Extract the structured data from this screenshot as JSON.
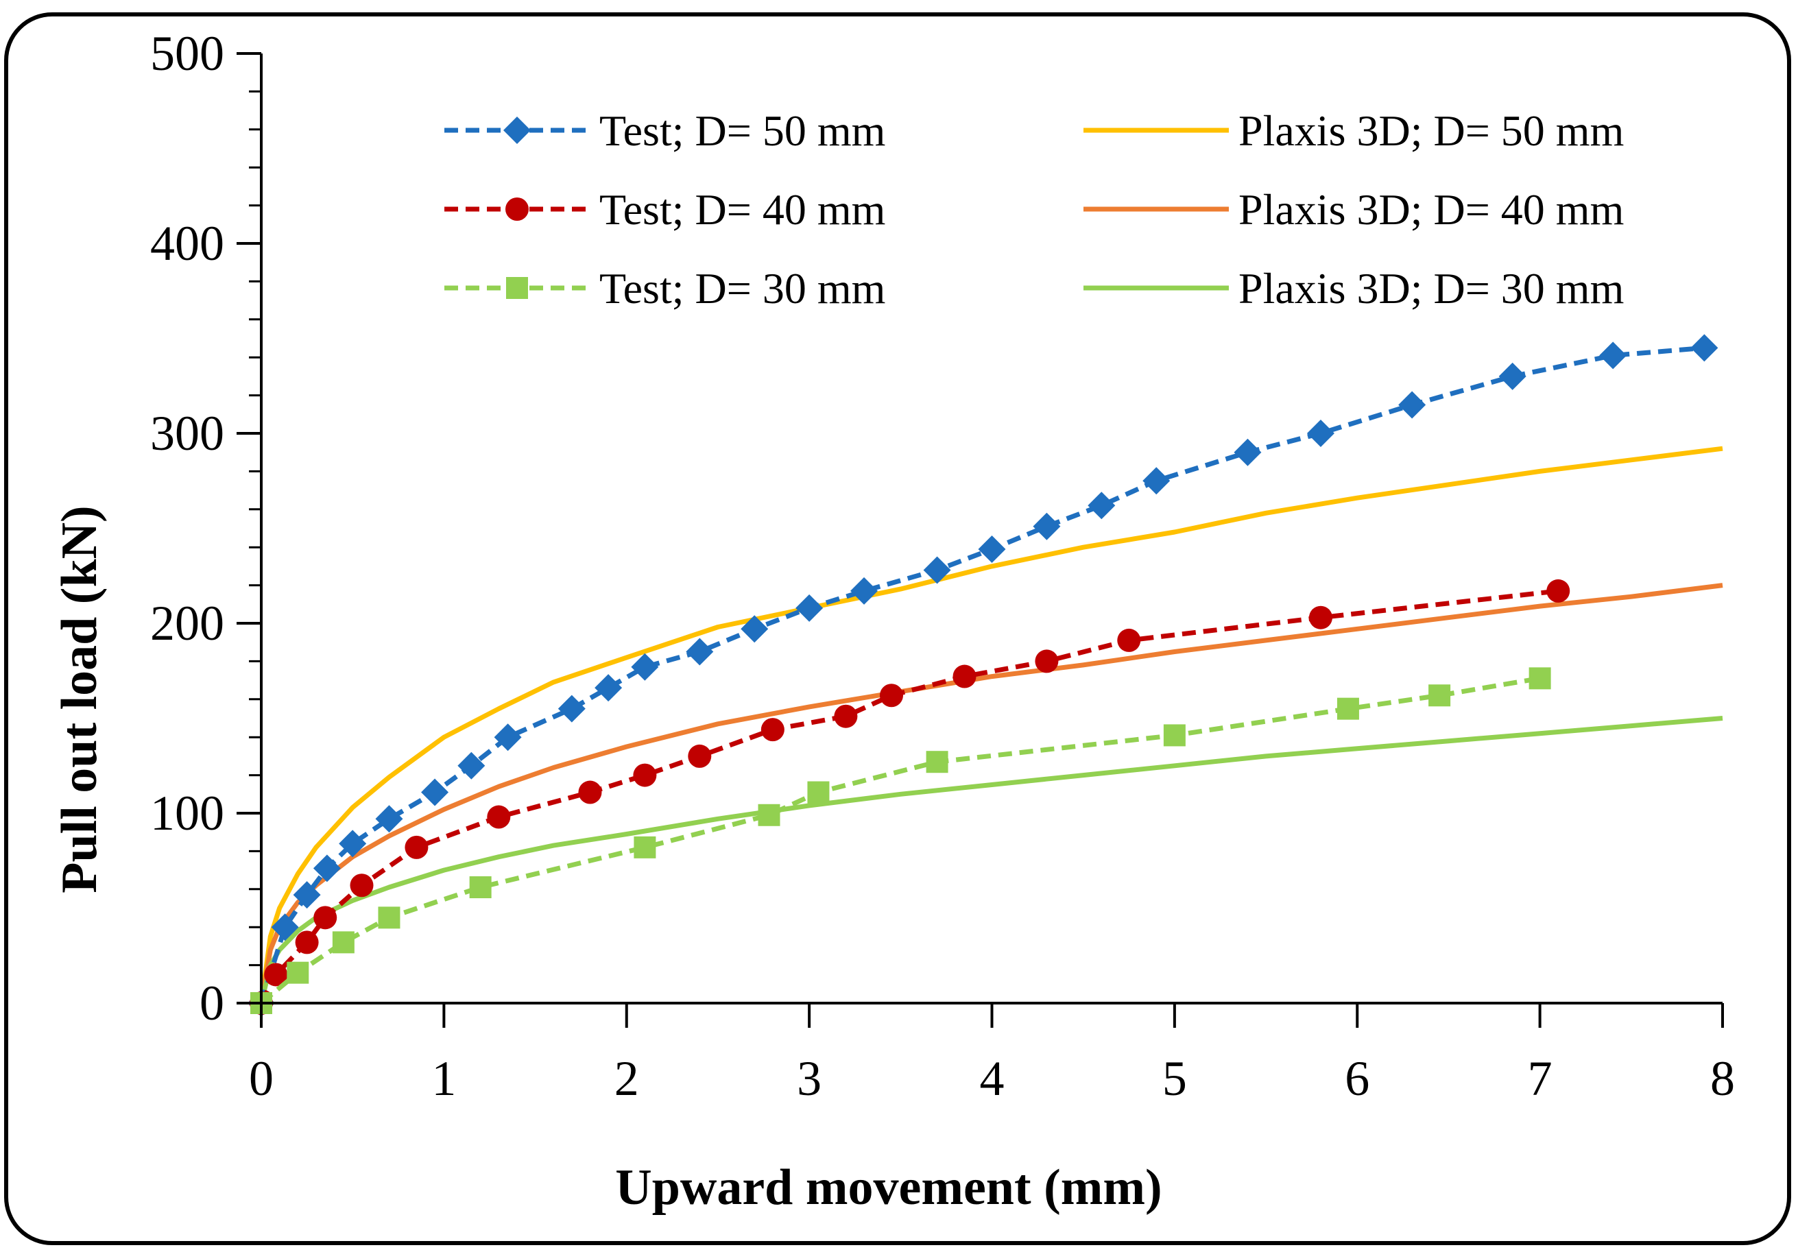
{
  "chart_data": {
    "type": "line",
    "title": "",
    "xlabel": "Upward movement (mm)",
    "ylabel": "Pull out load (kN)",
    "xlim": [
      0,
      8
    ],
    "ylim": [
      0,
      500
    ],
    "xticks": [
      0,
      1,
      2,
      3,
      4,
      5,
      6,
      7,
      8
    ],
    "yticks": [
      0,
      100,
      200,
      300,
      400,
      500
    ],
    "y_minor_step": 20,
    "grid": false,
    "legend_position": "top",
    "series": [
      {
        "name": "Test; D= 50 mm",
        "color": "#1F6FBF",
        "line": "dashed",
        "marker": "diamond",
        "x": [
          0,
          0.13,
          0.25,
          0.36,
          0.5,
          0.7,
          0.95,
          1.15,
          1.35,
          1.7,
          1.9,
          2.1,
          2.4,
          2.7,
          3.0,
          3.3,
          3.7,
          4.0,
          4.3,
          4.6,
          4.9,
          5.4,
          5.8,
          6.3,
          6.85,
          7.4,
          7.9
        ],
        "y": [
          0,
          40,
          57,
          71,
          84,
          97,
          111,
          125,
          140,
          155,
          166,
          177,
          185,
          197,
          208,
          217,
          228,
          239,
          251,
          262,
          275,
          290,
          300,
          315,
          330,
          341,
          345
        ]
      },
      {
        "name": "Test; D= 40 mm",
        "color": "#C00000",
        "line": "dashed",
        "marker": "circle",
        "x": [
          0,
          0.08,
          0.25,
          0.35,
          0.55,
          0.85,
          1.3,
          1.8,
          2.1,
          2.4,
          2.8,
          3.2,
          3.45,
          3.85,
          4.3,
          4.75,
          5.8,
          7.1
        ],
        "y": [
          0,
          15,
          32,
          45,
          62,
          82,
          98,
          111,
          120,
          130,
          144,
          151,
          162,
          172,
          180,
          191,
          203,
          217
        ]
      },
      {
        "name": "Test; D= 30 mm",
        "color": "#92D050",
        "line": "dashed",
        "marker": "square",
        "x": [
          0,
          0.2,
          0.45,
          0.7,
          1.2,
          2.1,
          2.78,
          3.05,
          3.7,
          5.0,
          5.95,
          6.45,
          7.0
        ],
        "y": [
          0,
          16,
          32,
          45,
          61,
          82,
          99,
          111,
          127,
          141,
          155,
          162,
          171
        ]
      },
      {
        "name": "Plaxis 3D; D= 50 mm",
        "color": "#FFC000",
        "line": "solid",
        "marker": "none",
        "x": [
          0,
          0.05,
          0.1,
          0.2,
          0.3,
          0.5,
          0.7,
          1.0,
          1.3,
          1.6,
          2.0,
          2.5,
          3.0,
          3.5,
          4.0,
          4.5,
          5.0,
          5.5,
          6.0,
          6.5,
          7.0,
          7.5,
          8.0
        ],
        "y": [
          0,
          35,
          50,
          68,
          82,
          103,
          119,
          140,
          155,
          169,
          182,
          198,
          208,
          218,
          230,
          240,
          248,
          258,
          266,
          273,
          280,
          286,
          292
        ]
      },
      {
        "name": "Plaxis 3D; D= 40 mm",
        "color": "#ED7D31",
        "line": "solid",
        "marker": "none",
        "x": [
          0,
          0.05,
          0.1,
          0.2,
          0.3,
          0.5,
          0.7,
          1.0,
          1.3,
          1.6,
          2.0,
          2.5,
          3.0,
          3.5,
          4.0,
          4.5,
          5.0,
          5.5,
          6.0,
          6.5,
          7.0,
          7.5,
          8.0
        ],
        "y": [
          0,
          28,
          40,
          53,
          62,
          77,
          88,
          102,
          114,
          124,
          135,
          147,
          156,
          164,
          172,
          178,
          185,
          191,
          197,
          203,
          209,
          214,
          220
        ]
      },
      {
        "name": "Plaxis 3D; D= 30 mm",
        "color": "#92D050",
        "line": "solid",
        "marker": "none",
        "x": [
          0,
          0.05,
          0.1,
          0.2,
          0.3,
          0.5,
          0.7,
          1.0,
          1.3,
          1.6,
          2.0,
          2.5,
          3.0,
          3.5,
          4.0,
          4.5,
          5.0,
          5.5,
          6.0,
          6.5,
          7.0,
          7.5,
          8.0
        ],
        "y": [
          0,
          20,
          28,
          38,
          45,
          54,
          61,
          70,
          77,
          83,
          89,
          97,
          104,
          110,
          115,
          120,
          125,
          130,
          134,
          138,
          142,
          146,
          150
        ]
      }
    ]
  }
}
